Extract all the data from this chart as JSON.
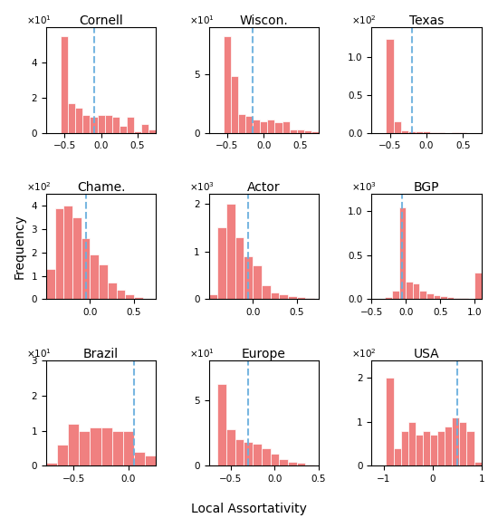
{
  "subplots": [
    {
      "name": "Cornell",
      "xlim": [
        -0.75,
        0.75
      ],
      "xticks": [
        -0.5,
        0.0,
        0.5
      ],
      "exp": 1,
      "dashed_x": -0.1,
      "ylim_max": 6.0,
      "yticks": [
        0,
        2,
        4
      ],
      "bin_edges": [
        -0.75,
        -0.65,
        -0.55,
        -0.45,
        -0.35,
        -0.25,
        -0.15,
        -0.05,
        0.05,
        0.15,
        0.25,
        0.35,
        0.45,
        0.55,
        0.65,
        0.75
      ],
      "counts": [
        0,
        0,
        55,
        17,
        14,
        10,
        9,
        10,
        10,
        9,
        4,
        9,
        1,
        5,
        2
      ]
    },
    {
      "name": "Wiscon.",
      "xlim": [
        -0.75,
        0.75
      ],
      "xticks": [
        -0.5,
        0.0,
        0.5
      ],
      "exp": 1,
      "dashed_x": -0.15,
      "ylim_max": 9.0,
      "yticks": [
        0,
        5
      ],
      "bin_edges": [
        -0.75,
        -0.65,
        -0.55,
        -0.45,
        -0.35,
        -0.25,
        -0.15,
        -0.05,
        0.05,
        0.15,
        0.25,
        0.35,
        0.45,
        0.55,
        0.65,
        0.75
      ],
      "counts": [
        0,
        0,
        82,
        48,
        16,
        14,
        11,
        10,
        11,
        9,
        10,
        3,
        3,
        2,
        1
      ]
    },
    {
      "name": "Texas",
      "xlim": [
        -0.75,
        0.75
      ],
      "xticks": [
        -0.5,
        0.0,
        0.5
      ],
      "exp": 2,
      "dashed_x": -0.2,
      "ylim_max": 1.4,
      "yticks": [
        0.0,
        0.5,
        1.0
      ],
      "bin_edges": [
        -0.75,
        -0.65,
        -0.55,
        -0.45,
        -0.35,
        -0.25,
        -0.15,
        -0.05,
        0.05,
        0.15,
        0.25,
        0.35,
        0.45,
        0.55,
        0.65,
        0.75
      ],
      "counts": [
        0,
        0,
        125,
        15,
        3,
        2,
        2,
        2,
        1,
        1,
        0,
        1,
        1,
        0,
        0
      ]
    },
    {
      "name": "Chame.",
      "xlim": [
        -0.5,
        0.75
      ],
      "xticks": [
        0.0,
        0.5
      ],
      "exp": 2,
      "dashed_x": -0.05,
      "ylim_max": 4.5,
      "yticks": [
        0,
        1,
        2,
        3,
        4
      ],
      "bin_edges": [
        -0.5,
        -0.4,
        -0.3,
        -0.2,
        -0.1,
        0.0,
        0.1,
        0.2,
        0.3,
        0.4,
        0.5,
        0.6,
        0.7,
        0.75
      ],
      "counts": [
        130,
        390,
        400,
        350,
        260,
        190,
        150,
        70,
        40,
        20,
        10,
        2,
        2
      ]
    },
    {
      "name": "Actor",
      "xlim": [
        -0.5,
        0.75
      ],
      "xticks": [
        0.0,
        0.5
      ],
      "exp": 3,
      "dashed_x": -0.05,
      "ylim_max": 2.2,
      "yticks": [
        0,
        1,
        2
      ],
      "bin_edges": [
        -0.5,
        -0.4,
        -0.3,
        -0.2,
        -0.1,
        0.0,
        0.1,
        0.2,
        0.3,
        0.4,
        0.5,
        0.6,
        0.7,
        0.75
      ],
      "counts": [
        100,
        1500,
        2000,
        1300,
        900,
        700,
        300,
        150,
        100,
        60,
        40,
        20,
        10
      ]
    },
    {
      "name": "BGP",
      "xlim": [
        -0.5,
        1.1
      ],
      "xticks": [
        -0.5,
        0.0,
        0.5,
        1.0
      ],
      "exp": 3,
      "dashed_x": -0.05,
      "ylim_max": 1.2,
      "yticks": [
        0.0,
        0.5,
        1.0
      ],
      "bin_edges": [
        -0.5,
        -0.4,
        -0.3,
        -0.2,
        -0.1,
        0.0,
        0.1,
        0.2,
        0.3,
        0.4,
        0.5,
        0.6,
        0.7,
        0.8,
        0.9,
        1.0,
        1.1
      ],
      "counts": [
        0,
        0,
        30,
        100,
        1050,
        200,
        180,
        100,
        70,
        50,
        40,
        30,
        20,
        10,
        5,
        300
      ]
    },
    {
      "name": "Brazil",
      "xlim": [
        -0.75,
        0.25
      ],
      "xticks": [
        -0.5,
        0.0
      ],
      "exp": 1,
      "dashed_x": 0.05,
      "ylim_max": 3.0,
      "yticks": [
        0,
        1,
        2,
        3
      ],
      "bin_edges": [
        -0.75,
        -0.65,
        -0.55,
        -0.45,
        -0.35,
        -0.25,
        -0.15,
        -0.05,
        0.05,
        0.15,
        0.25
      ],
      "counts": [
        1,
        6,
        12,
        10,
        11,
        11,
        10,
        10,
        4,
        3
      ]
    },
    {
      "name": "Europe",
      "xlim": [
        -0.75,
        0.5
      ],
      "xticks": [
        -0.5,
        0.0,
        0.5
      ],
      "exp": 1,
      "dashed_x": -0.3,
      "ylim_max": 8.0,
      "yticks": [
        0,
        5
      ],
      "bin_edges": [
        -0.75,
        -0.65,
        -0.55,
        -0.45,
        -0.35,
        -0.25,
        -0.15,
        -0.05,
        0.05,
        0.15,
        0.25,
        0.35,
        0.45
      ],
      "counts": [
        1,
        62,
        28,
        20,
        18,
        17,
        13,
        9,
        5,
        3,
        2,
        1
      ]
    },
    {
      "name": "USA",
      "xlim": [
        -1.25,
        1.0
      ],
      "xticks": [
        -1.0,
        0.0,
        1.0
      ],
      "exp": 2,
      "dashed_x": 0.5,
      "ylim_max": 2.4,
      "yticks": [
        0,
        1,
        2
      ],
      "bin_edges": [
        -1.25,
        -1.1,
        -0.95,
        -0.8,
        -0.65,
        -0.5,
        -0.35,
        -0.2,
        -0.05,
        0.1,
        0.25,
        0.4,
        0.55,
        0.7,
        0.85,
        1.0
      ],
      "counts": [
        0,
        0,
        200,
        40,
        80,
        100,
        70,
        80,
        70,
        80,
        90,
        110,
        100,
        80,
        10
      ]
    }
  ],
  "bar_color": "#f08080",
  "bar_edge_color": "white",
  "dashed_color": "#6ab0de",
  "ylabel": "Frequency",
  "xlabel": "Local Assortativity"
}
